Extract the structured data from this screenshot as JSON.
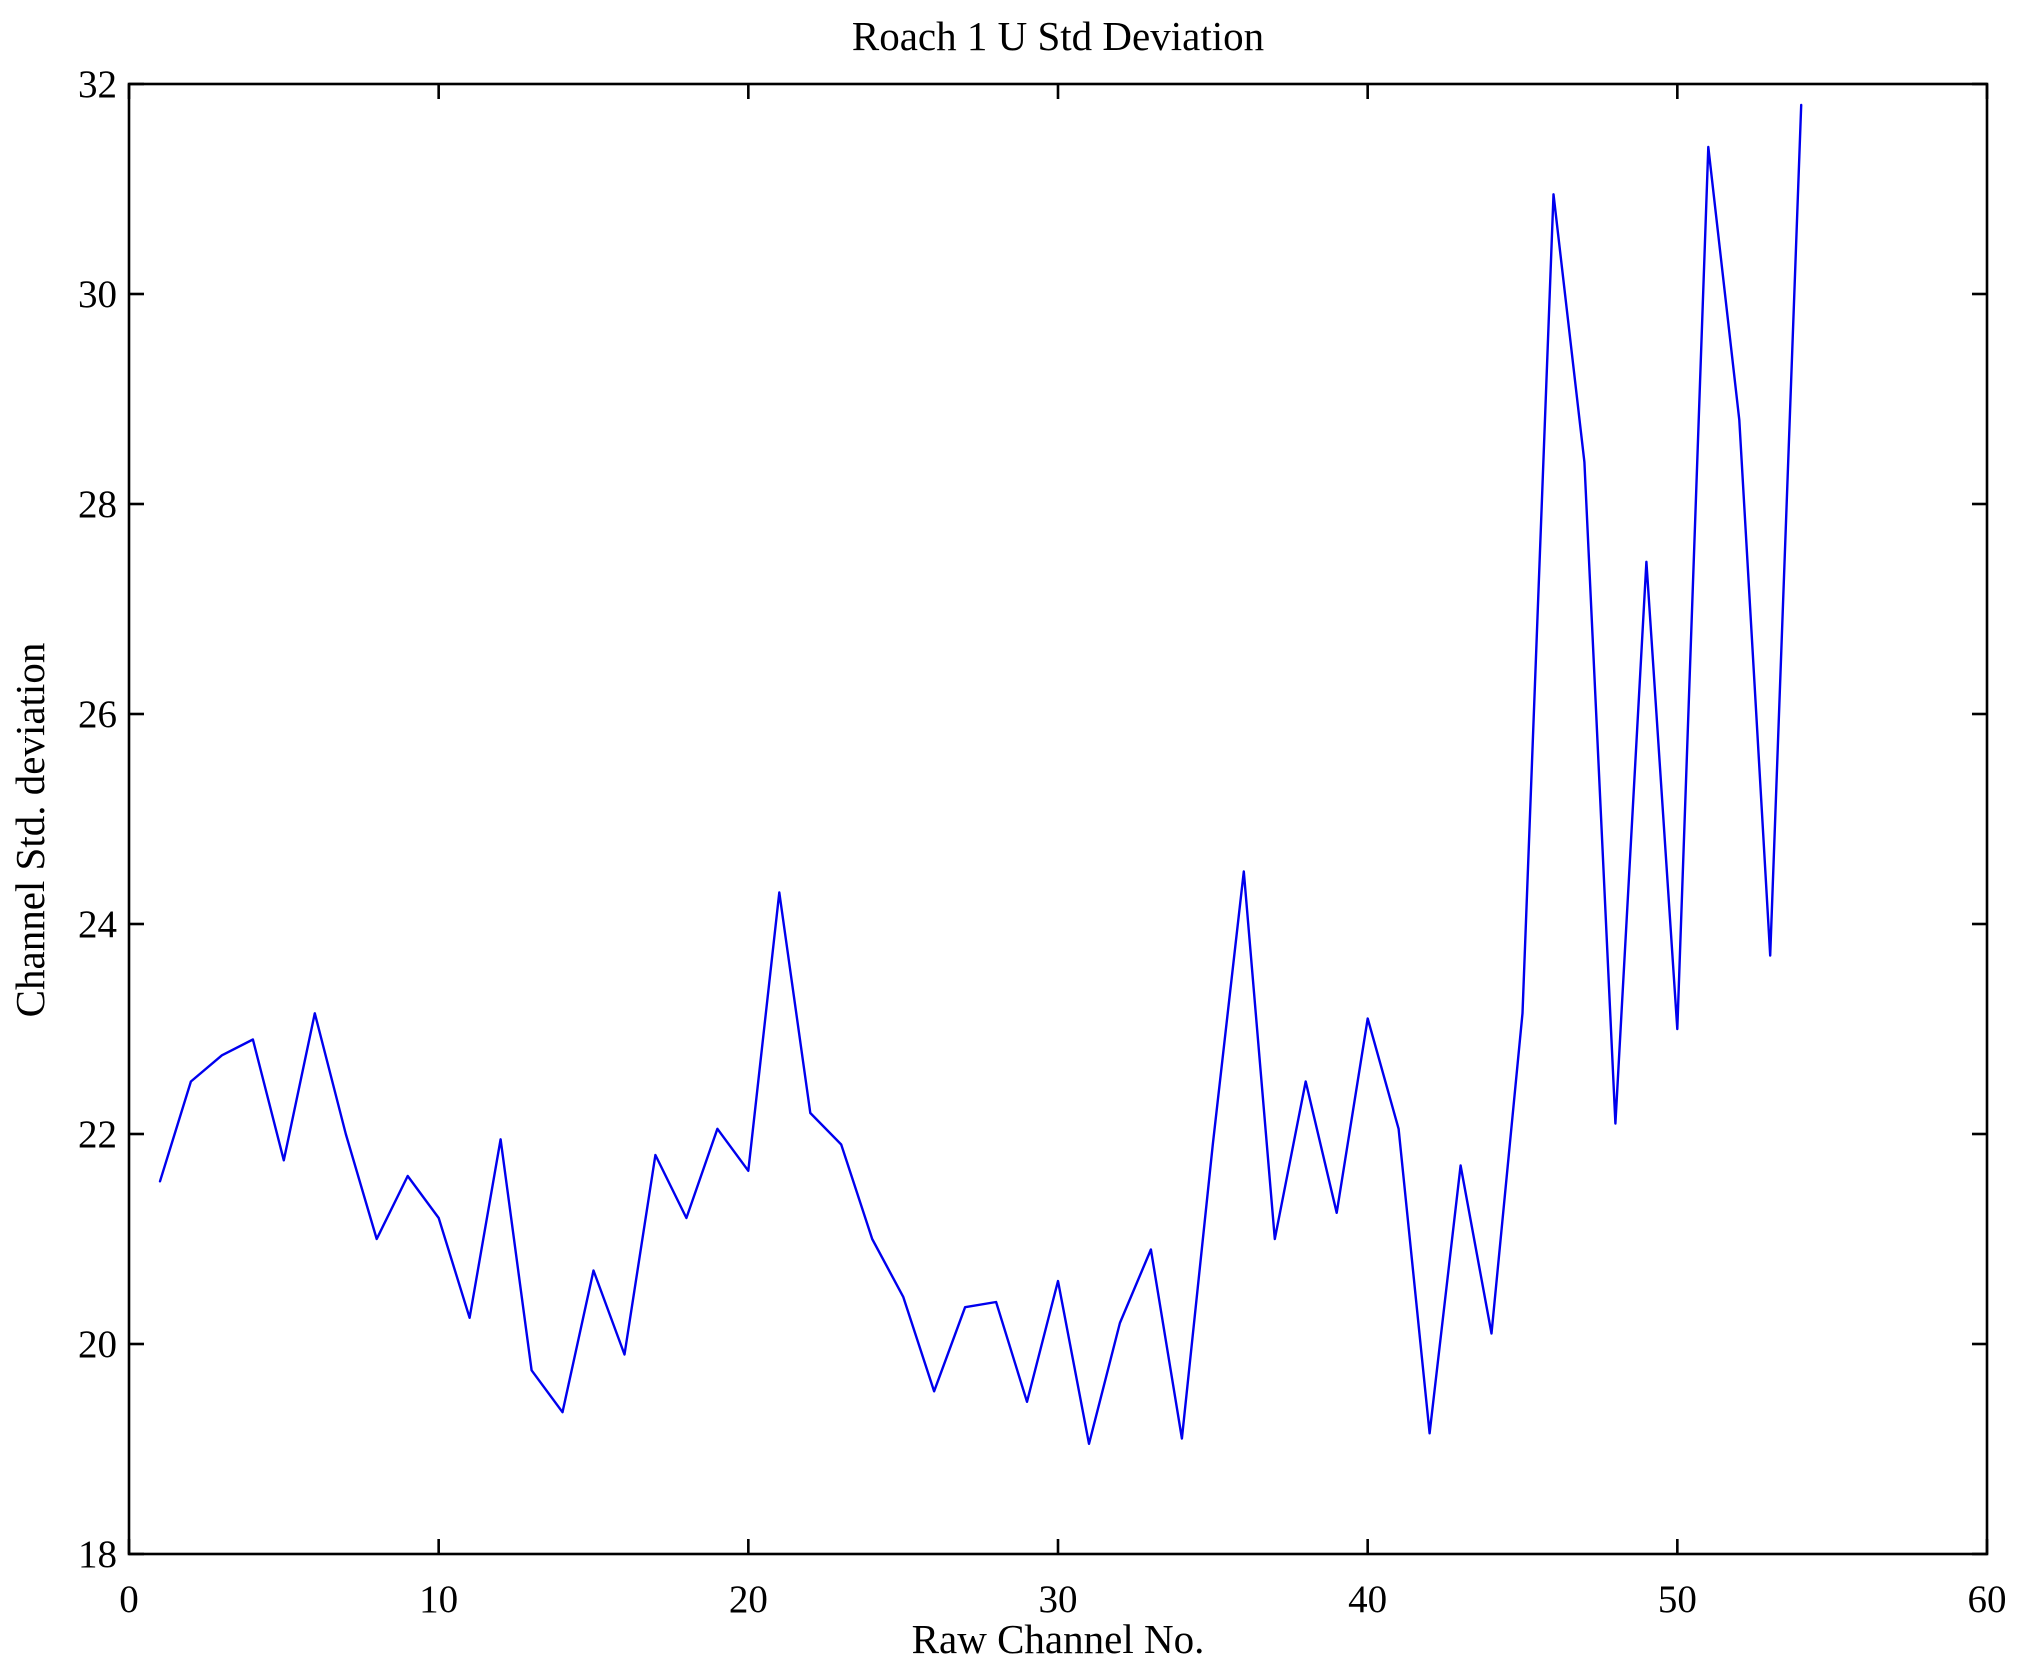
{
  "chart_data": {
    "type": "line",
    "title": "Roach 1 U Std Deviation",
    "xlabel": "Raw Channel No.",
    "ylabel": "Channel Std. deviation",
    "xlim": [
      0,
      60
    ],
    "ylim": [
      18,
      32
    ],
    "x_ticks": [
      0,
      10,
      20,
      30,
      40,
      50,
      60
    ],
    "y_ticks": [
      18,
      20,
      22,
      24,
      26,
      28,
      30,
      32
    ],
    "grid": false,
    "legend": "none",
    "line_color": "#0000EE",
    "frame_color": "#000000",
    "x": [
      1,
      2,
      3,
      4,
      5,
      6,
      7,
      8,
      9,
      10,
      11,
      12,
      13,
      14,
      15,
      16,
      17,
      18,
      19,
      20,
      21,
      22,
      23,
      24,
      25,
      26,
      27,
      28,
      29,
      30,
      31,
      32,
      33,
      34,
      35,
      36,
      37,
      38,
      39,
      40,
      41,
      42,
      43,
      44,
      45,
      46,
      47,
      48,
      49,
      50,
      51,
      52,
      53,
      54
    ],
    "values": [
      21.55,
      22.5,
      22.75,
      22.9,
      21.75,
      23.15,
      22.0,
      21.0,
      21.6,
      21.2,
      20.25,
      21.95,
      19.75,
      19.35,
      20.7,
      19.9,
      21.8,
      21.2,
      22.05,
      21.65,
      24.3,
      22.2,
      21.9,
      21.0,
      20.45,
      19.55,
      20.35,
      20.4,
      19.45,
      20.6,
      19.05,
      20.2,
      20.9,
      19.1,
      21.9,
      24.5,
      21.0,
      22.5,
      21.25,
      23.1,
      22.05,
      19.15,
      21.7,
      20.1,
      23.15,
      30.95,
      28.4,
      22.1,
      27.45,
      23.0,
      31.4,
      28.8,
      23.7,
      31.8
    ]
  }
}
